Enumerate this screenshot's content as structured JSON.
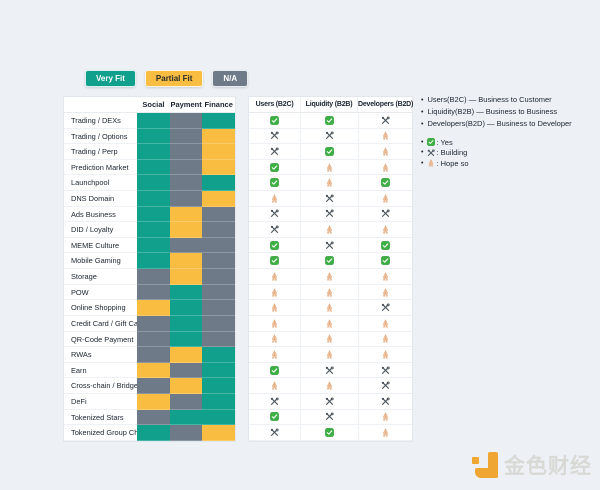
{
  "legend_buttons": [
    {
      "label": "Very Fit",
      "type": "very"
    },
    {
      "label": "Partial Fit",
      "type": "partial"
    },
    {
      "label": "N/A",
      "type": "na"
    }
  ],
  "colors": {
    "very_fit": "#11A08C",
    "partial_fit": "#F8BD41",
    "na": "#6E7A87",
    "btn_text_light": "#ffffff",
    "btn_text_dark": "#2b2b2b",
    "yes_green": "#3CB043",
    "yes_green_border": "#2F9838",
    "tools_gray": "#4C555D",
    "hands_tan": "#EFC09B",
    "hands_tan_border": "#D99E6F",
    "watermark_orange": "#F0A633"
  },
  "chart_data": {
    "type": "table",
    "fit_columns": [
      "Social",
      "Payment",
      "Finance"
    ],
    "audience_columns": [
      "Users (B2C)",
      "Liquidity (B2B)",
      "Developers (B2D)"
    ],
    "fit_legend": {
      "very": "Very Fit",
      "partial": "Partial Fit",
      "na": "N/A"
    },
    "icon_legend": {
      "yes": "Yes",
      "building": "Building",
      "hope": "Hope so"
    },
    "rows": [
      {
        "label": "Trading / DEXs",
        "fits": [
          "very",
          "na",
          "very"
        ],
        "audience": [
          "yes",
          "yes",
          "building"
        ]
      },
      {
        "label": "Trading / Options",
        "fits": [
          "very",
          "na",
          "partial"
        ],
        "audience": [
          "building",
          "building",
          "hope"
        ]
      },
      {
        "label": "Trading / Perp",
        "fits": [
          "very",
          "na",
          "partial"
        ],
        "audience": [
          "building",
          "yes",
          "hope"
        ]
      },
      {
        "label": "Prediction Market",
        "fits": [
          "very",
          "na",
          "partial"
        ],
        "audience": [
          "yes",
          "hope",
          "hope"
        ]
      },
      {
        "label": "Launchpool",
        "fits": [
          "very",
          "na",
          "very"
        ],
        "audience": [
          "yes",
          "hope",
          "yes"
        ]
      },
      {
        "label": "DNS Domain",
        "fits": [
          "very",
          "na",
          "partial"
        ],
        "audience": [
          "hope",
          "building",
          "hope"
        ]
      },
      {
        "label": "Ads Business",
        "fits": [
          "very",
          "partial",
          "na"
        ],
        "audience": [
          "building",
          "building",
          "building"
        ]
      },
      {
        "label": "DID / Loyalty",
        "fits": [
          "very",
          "partial",
          "na"
        ],
        "audience": [
          "building",
          "hope",
          "hope"
        ]
      },
      {
        "label": "MEME Culture",
        "fits": [
          "very",
          "na",
          "na"
        ],
        "audience": [
          "yes",
          "building",
          "yes"
        ]
      },
      {
        "label": "Mobile Gaming",
        "fits": [
          "very",
          "partial",
          "na"
        ],
        "audience": [
          "yes",
          "yes",
          "yes"
        ]
      },
      {
        "label": "Storage",
        "fits": [
          "na",
          "partial",
          "na"
        ],
        "audience": [
          "hope",
          "hope",
          "hope"
        ]
      },
      {
        "label": "POW",
        "fits": [
          "na",
          "very",
          "na"
        ],
        "audience": [
          "hope",
          "hope",
          "hope"
        ]
      },
      {
        "label": "Online Shopping",
        "fits": [
          "partial",
          "very",
          "na"
        ],
        "audience": [
          "hope",
          "hope",
          "building"
        ]
      },
      {
        "label": "Credit Card / Gift Card",
        "fits": [
          "na",
          "very",
          "na"
        ],
        "audience": [
          "hope",
          "hope",
          "hope"
        ]
      },
      {
        "label": "QR-Code Payment",
        "fits": [
          "na",
          "very",
          "na"
        ],
        "audience": [
          "hope",
          "hope",
          "hope"
        ]
      },
      {
        "label": "RWAs",
        "fits": [
          "na",
          "partial",
          "very"
        ],
        "audience": [
          "hope",
          "hope",
          "hope"
        ]
      },
      {
        "label": "Earn",
        "fits": [
          "partial",
          "na",
          "very"
        ],
        "audience": [
          "yes",
          "building",
          "building"
        ]
      },
      {
        "label": "Cross-chain / Bridge",
        "fits": [
          "na",
          "partial",
          "very"
        ],
        "audience": [
          "hope",
          "hope",
          "building"
        ]
      },
      {
        "label": "DeFi",
        "fits": [
          "partial",
          "na",
          "very"
        ],
        "audience": [
          "building",
          "building",
          "building"
        ]
      },
      {
        "label": "Tokenized Stars",
        "fits": [
          "na",
          "very",
          "very"
        ],
        "audience": [
          "yes",
          "building",
          "hope"
        ]
      },
      {
        "label": "Tokenized Group Chat",
        "fits": [
          "very",
          "na",
          "partial"
        ],
        "audience": [
          "building",
          "yes",
          "hope"
        ]
      }
    ]
  },
  "legend_notes": [
    "Users(B2C) — Business to Customer",
    "Liquidity(B2B) — Business to Business",
    "Developers(B2D) — Business to Developer"
  ],
  "icon_legend_items": [
    {
      "icon": "yes",
      "label": ": Yes"
    },
    {
      "icon": "building",
      "label": ": Building"
    },
    {
      "icon": "hope",
      "label": ": Hope so"
    }
  ],
  "watermark": {
    "text": "金色财经"
  }
}
